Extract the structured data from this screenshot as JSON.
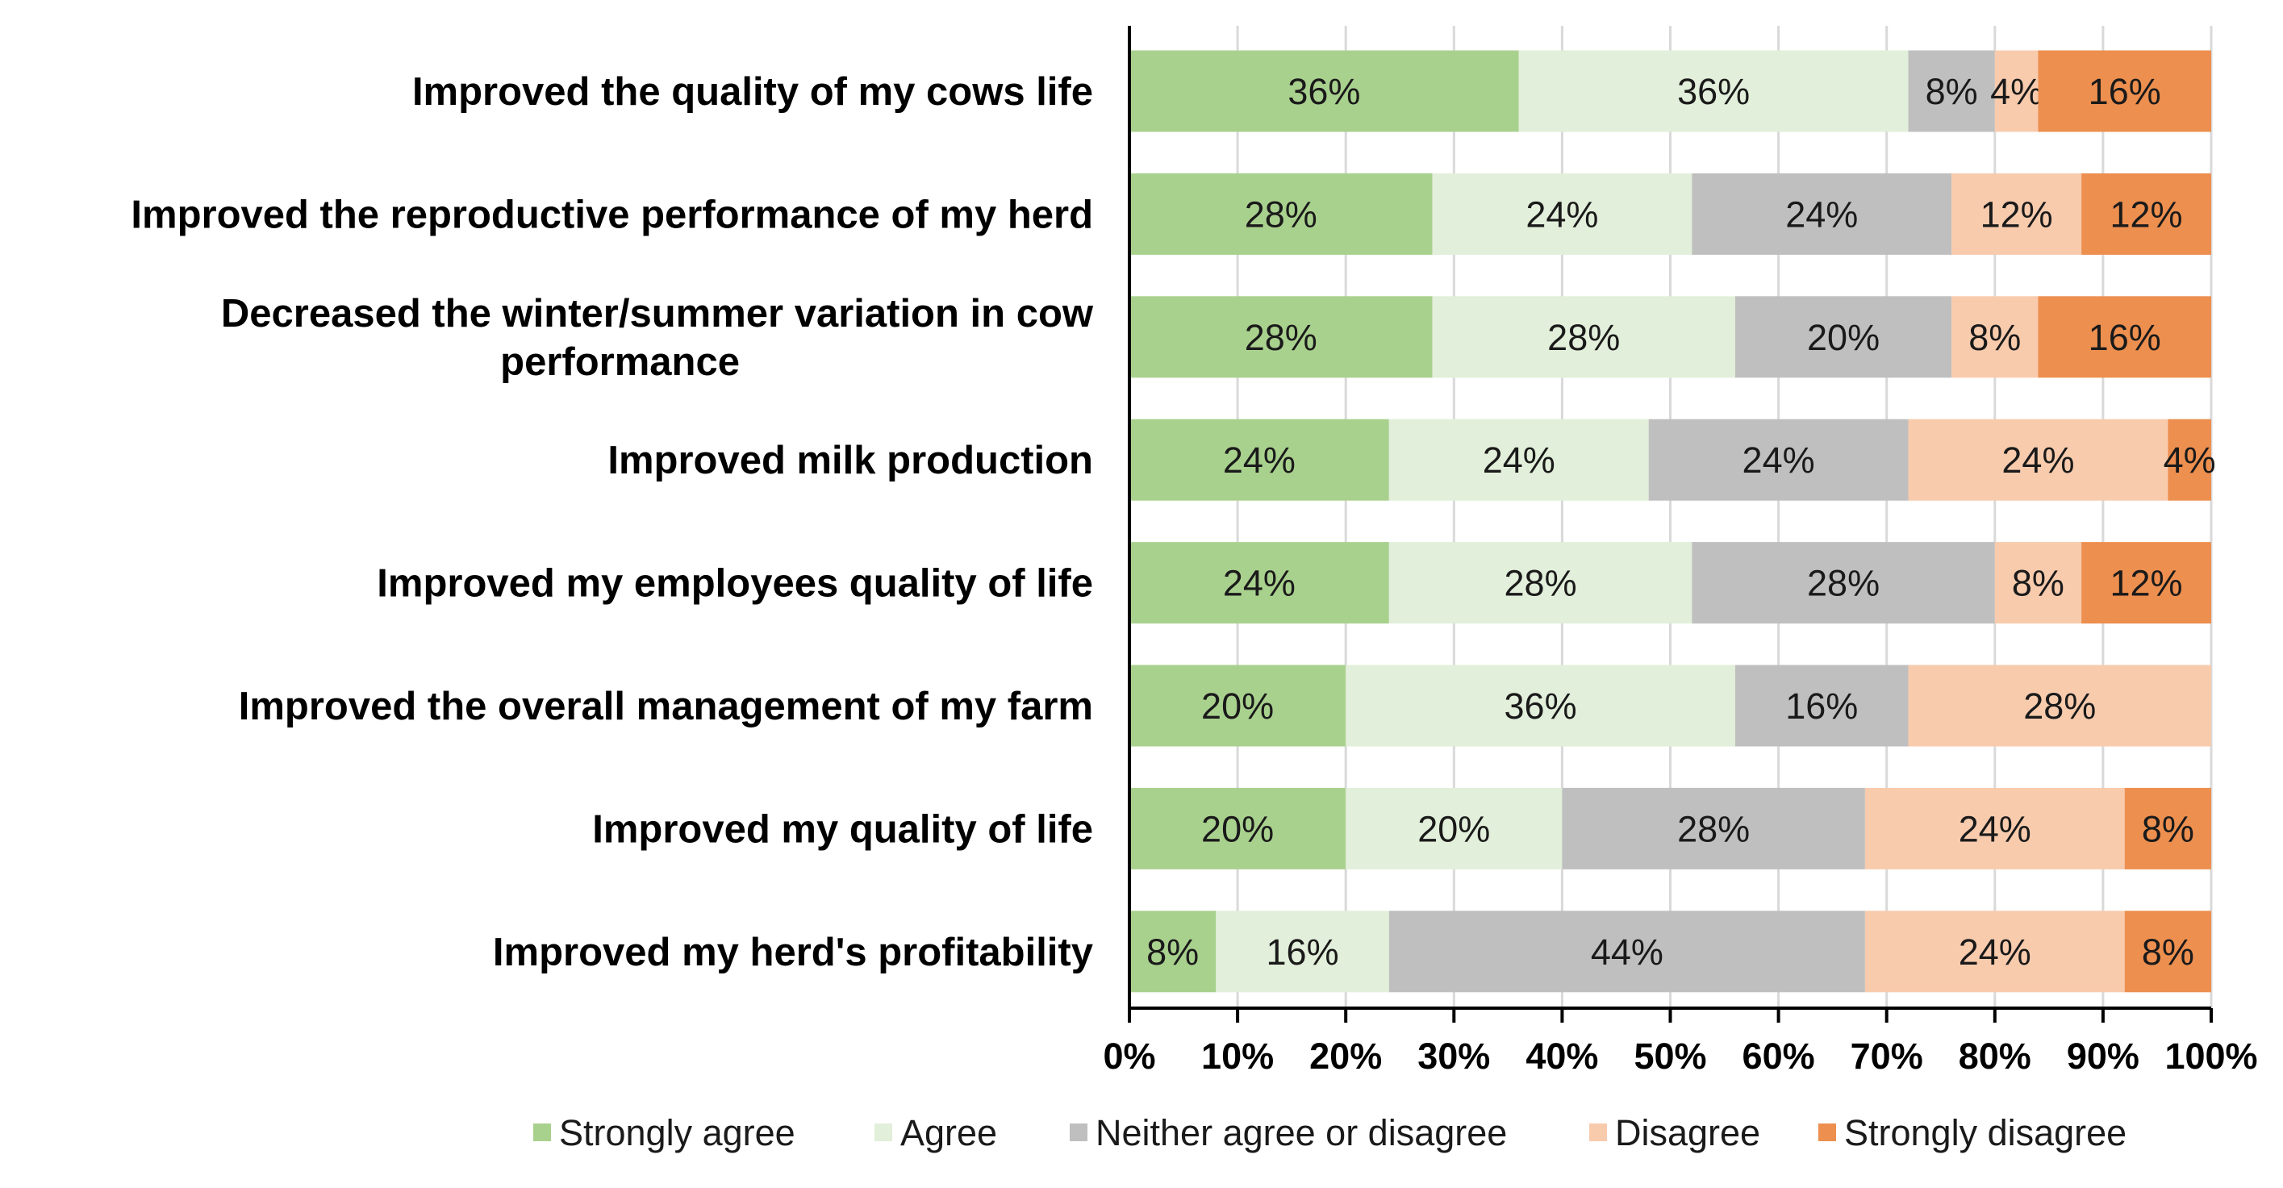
{
  "chart_data": {
    "type": "bar",
    "orientation": "horizontal",
    "stacking": "percent",
    "title": "",
    "xlabel": "",
    "ylabel": "",
    "xlim": [
      0,
      100
    ],
    "grid": true,
    "legend_position": "bottom",
    "x_ticks": [
      "0%",
      "10%",
      "20%",
      "30%",
      "40%",
      "50%",
      "60%",
      "70%",
      "80%",
      "90%",
      "100%"
    ],
    "categories": [
      [
        "Improved the quality of my cows life"
      ],
      [
        "Improved the reproductive performance of my herd"
      ],
      [
        "Decreased the winter/summer variation in cow",
        "performance"
      ],
      [
        "Improved milk production"
      ],
      [
        "Improved my employees quality of life"
      ],
      [
        "Improved the overall management  of my farm"
      ],
      [
        "Improved my quality of life"
      ],
      [
        "Improved my herd's profitability"
      ]
    ],
    "series": [
      {
        "name": "Strongly agree",
        "color": "#a9d18e",
        "values": [
          36,
          28,
          28,
          24,
          24,
          20,
          20,
          8
        ]
      },
      {
        "name": "Agree",
        "color": "#e2efda",
        "values": [
          36,
          24,
          28,
          24,
          28,
          36,
          20,
          16
        ]
      },
      {
        "name": "Neither agree or disagree",
        "color": "#bfbfbf",
        "values": [
          8,
          24,
          20,
          24,
          28,
          16,
          28,
          44
        ]
      },
      {
        "name": "Disagree",
        "color": "#f8cbad",
        "values": [
          4,
          12,
          8,
          24,
          8,
          28,
          24,
          24
        ]
      },
      {
        "name": "Strongly disagree",
        "color": "#ed8f4f",
        "values": [
          16,
          12,
          16,
          4,
          12,
          0,
          8,
          8
        ]
      }
    ]
  }
}
